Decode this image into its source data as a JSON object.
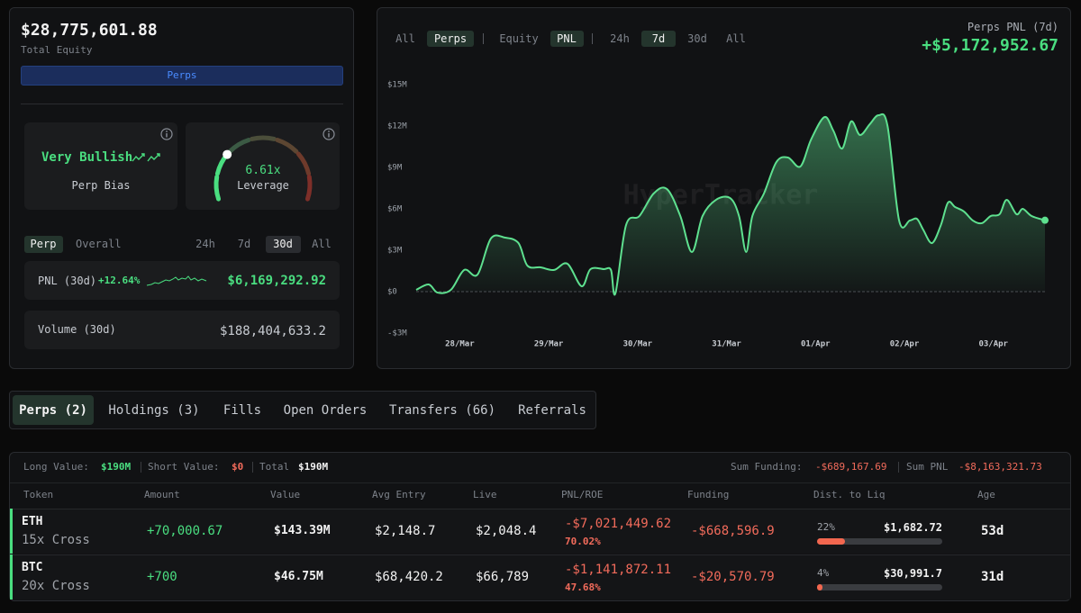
{
  "summary": {
    "equity": "$28,775,601.88",
    "equity_label": "Total Equity",
    "button": "Perps"
  },
  "bias": {
    "value": "Very Bullish",
    "label": "Perp Bias"
  },
  "leverage": {
    "value": "6.61x",
    "label": "Leverage"
  },
  "stats_tabs": {
    "scope": [
      "Perp",
      "Overall"
    ],
    "ranges": [
      "24h",
      "7d",
      "30d",
      "All"
    ]
  },
  "pnl": {
    "label": "PNL (30d)",
    "change": "+12.64%",
    "value": "$6,169,292.92"
  },
  "volume": {
    "label": "Volume (30d)",
    "value": "$188,404,633.2"
  },
  "chart_tabs": {
    "source": [
      "All",
      "Perps"
    ],
    "metric": [
      "Equity",
      "PNL"
    ],
    "ranges": [
      "24h",
      "7d",
      "30d",
      "All"
    ]
  },
  "chart_data": {
    "type": "line",
    "title": "Perps PNL (7d)",
    "value_label": "+$5,172,952.67",
    "watermark": "HyperTracker",
    "color": "#5ee08f",
    "x": [
      -0.49,
      -0.35,
      -0.25,
      -0.1,
      0.05,
      0.2,
      0.35,
      0.51,
      0.66,
      0.76,
      0.91,
      1.06,
      1.21,
      1.37,
      1.47,
      1.62,
      1.7,
      1.75,
      1.87,
      2.02,
      2.18,
      2.33,
      2.48,
      2.61,
      2.73,
      2.88,
      3.04,
      3.14,
      3.22,
      3.29,
      3.42,
      3.56,
      3.69,
      3.83,
      3.95,
      4.1,
      4.2,
      4.3,
      4.4,
      4.5,
      4.61,
      4.71,
      4.81,
      4.94,
      5.06,
      5.14,
      5.21,
      5.31,
      5.41,
      5.49,
      5.57,
      5.67,
      5.77,
      5.87,
      5.97,
      6.07,
      6.15,
      6.26,
      6.33,
      6.43,
      6.58
    ],
    "values": [
      130000,
      520000,
      -70000,
      130000,
      1570000,
      1240000,
      3850000,
      3910000,
      3520000,
      1890000,
      1760000,
      1570000,
      2020000,
      390000,
      1630000,
      1630000,
      1570000,
      -130000,
      4830000,
      5480000,
      7110000,
      7430000,
      5480000,
      2870000,
      5480000,
      6650000,
      6780000,
      5480000,
      2870000,
      5480000,
      7110000,
      9390000,
      9720000,
      9070000,
      11020000,
      12650000,
      11670000,
      10370000,
      12330000,
      11350000,
      12130000,
      12780000,
      12000000,
      5150000,
      5150000,
      5280000,
      4500000,
      3520000,
      4830000,
      6460000,
      6130000,
      5800000,
      5150000,
      4960000,
      5480000,
      5610000,
      6650000,
      5610000,
      6000000,
      5480000,
      5172952.67
    ],
    "xlim": [
      -0.49,
      6.58
    ],
    "xticks": [
      {
        "value": 0,
        "label": "28/Mar"
      },
      {
        "value": 1,
        "label": "29/Mar"
      },
      {
        "value": 2,
        "label": "30/Mar"
      },
      {
        "value": 3,
        "label": "31/Mar"
      },
      {
        "value": 4,
        "label": "01/Apr"
      },
      {
        "value": 5,
        "label": "02/Apr"
      },
      {
        "value": 6,
        "label": "03/Apr"
      }
    ],
    "ylim": [
      -3000000,
      15000000
    ],
    "yticks": [
      {
        "value": -3000000,
        "label": "-$3M"
      },
      {
        "value": 0,
        "label": "$0"
      },
      {
        "value": 3000000,
        "label": "$3M"
      },
      {
        "value": 6000000,
        "label": "$6M"
      },
      {
        "value": 9000000,
        "label": "$9M"
      },
      {
        "value": 12000000,
        "label": "$12M"
      },
      {
        "value": 15000000,
        "label": "$15M"
      }
    ]
  },
  "tabs": [
    "Perps (2)",
    "Holdings (3)",
    "Fills",
    "Open Orders",
    "Transfers (66)",
    "Referrals"
  ],
  "positions": {
    "summary": [
      {
        "label": "Long Value:",
        "value": "$190M"
      },
      {
        "label": "Short Value:",
        "value": "$0"
      },
      {
        "label": "Total",
        "value": "$190M"
      }
    ],
    "totals": [
      {
        "label": "Sum Funding:",
        "value": "-$689,167.69"
      },
      {
        "label": "Sum PNL",
        "value": "-$8,163,321.73"
      }
    ],
    "columns": [
      "Token",
      "Amount",
      "Value",
      "Avg Entry",
      "Live",
      "PNL/ROE",
      "Funding",
      "Dist. to Liq",
      "Age"
    ],
    "rows": [
      {
        "token": "ETH",
        "mode": "15x Cross",
        "amount": "+70,000.67",
        "value": "$143.39M",
        "avg_entry": "$2,148.7",
        "live": "$2,048.4",
        "pnl": "-$7,021,449.62",
        "roe": "70.02%",
        "funding": "-$668,596.9",
        "dist": {
          "value": 22,
          "label": "22%"
        },
        "liq_price": "$1,682.72",
        "age": "53d"
      },
      {
        "token": "BTC",
        "mode": "20x Cross",
        "amount": "+700",
        "value": "$46.75M",
        "avg_entry": "$68,420.2",
        "live": "$66,789",
        "pnl": "-$1,141,872.11",
        "roe": "47.68%",
        "funding": "-$20,570.79",
        "dist": {
          "value": 4,
          "label": "4%"
        },
        "liq_price": "$30,991.7",
        "age": "31d"
      }
    ]
  }
}
